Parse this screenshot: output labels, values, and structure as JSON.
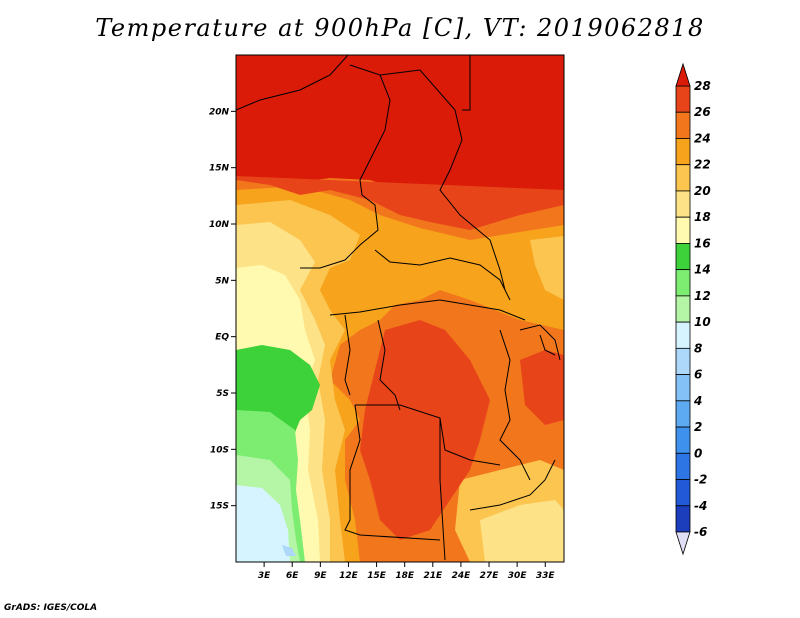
{
  "title": "Temperature at 900hPa [C], VT: 2019062818",
  "credit": "GrADS: IGES/COLA",
  "map": {
    "lon_range": [
      0,
      35
    ],
    "lat_range": [
      -20,
      25
    ],
    "x_ticks": [
      {
        "lon": 3,
        "label": "3E"
      },
      {
        "lon": 6,
        "label": "6E"
      },
      {
        "lon": 9,
        "label": "9E"
      },
      {
        "lon": 12,
        "label": "12E"
      },
      {
        "lon": 15,
        "label": "15E"
      },
      {
        "lon": 18,
        "label": "18E"
      },
      {
        "lon": 21,
        "label": "21E"
      },
      {
        "lon": 24,
        "label": "24E"
      },
      {
        "lon": 27,
        "label": "27E"
      },
      {
        "lon": 30,
        "label": "30E"
      },
      {
        "lon": 33,
        "label": "33E"
      }
    ],
    "y_ticks": [
      {
        "lat": 20,
        "label": "20N"
      },
      {
        "lat": 15,
        "label": "15N"
      },
      {
        "lat": 10,
        "label": "10N"
      },
      {
        "lat": 5,
        "label": "5N"
      },
      {
        "lat": 0,
        "label": "EQ"
      },
      {
        "lat": -5,
        "label": "5S"
      },
      {
        "lat": -10,
        "label": "10S"
      },
      {
        "lat": -15,
        "label": "15S"
      }
    ]
  },
  "colorbar": {
    "levels": [
      "-6",
      "-4",
      "-2",
      "0",
      "2",
      "4",
      "6",
      "8",
      "10",
      "12",
      "14",
      "16",
      "18",
      "20",
      "22",
      "24",
      "26",
      "28"
    ],
    "colors": [
      "#1a1c78",
      "#1c3dbc",
      "#2159d6",
      "#2d74e4",
      "#3e91ed",
      "#5eaaf2",
      "#84c1f6",
      "#add8fa",
      "#d6f4ff",
      "#b4f6a6",
      "#7ded72",
      "#3dd13a",
      "#fffab0",
      "#fde287",
      "#fbc550",
      "#f7a31c",
      "#f2761b",
      "#e8441a",
      "#d91b08"
    ]
  }
}
